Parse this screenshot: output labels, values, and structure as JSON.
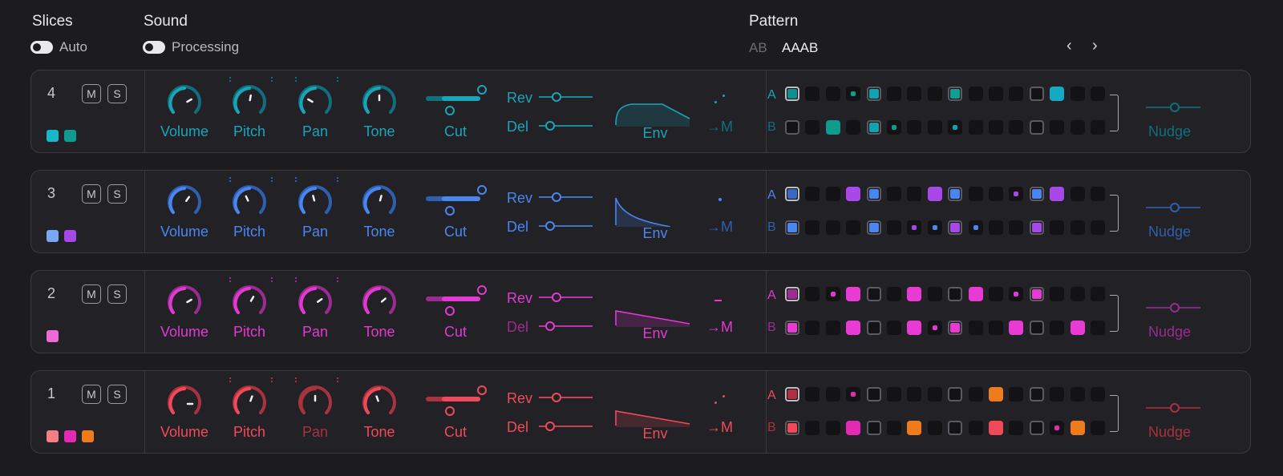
{
  "header": {
    "slices_label": "Slices",
    "sound_label": "Sound",
    "pattern_label": "Pattern",
    "auto_label": "Auto",
    "processing_label": "Processing",
    "pattern_ab": "AB",
    "pattern_name": "AAAB",
    "prev": "‹",
    "next": "›"
  },
  "common": {
    "mute": "M",
    "solo": "S",
    "volume": "Volume",
    "pitch": "Pitch",
    "pan": "Pan",
    "tone": "Tone",
    "cut": "Cut",
    "rev": "Rev",
    "del": "Del",
    "env": "Env",
    "to_m": "→M",
    "nudge": "Nudge",
    "row_a": "A",
    "row_b": "B"
  },
  "rows": [
    {
      "number": "4",
      "accent": "#1aa4b8",
      "dim": "#0f6f7c",
      "swatches": [
        "#19b6c9",
        "#0f9b90"
      ],
      "env": "plateau",
      "tail": "dots"
    },
    {
      "number": "3",
      "accent": "#4a86f0",
      "dim": "#2f5fae",
      "swatches": [
        "#7ba6f5",
        "#a648e6"
      ],
      "env": "decay",
      "tail": "dot"
    },
    {
      "number": "2",
      "accent": "#e13ad0",
      "dim": "#9a2b90",
      "swatches": [
        "#f06ad6"
      ],
      "env": "ramp",
      "tail": "dash"
    },
    {
      "number": "1",
      "accent": "#f04a5a",
      "dim": "#a8323e",
      "swatches": [
        "#f27f86",
        "#e42ab5",
        "#f07b1a"
      ],
      "env": "ramp",
      "tail": "dots"
    }
  ]
}
